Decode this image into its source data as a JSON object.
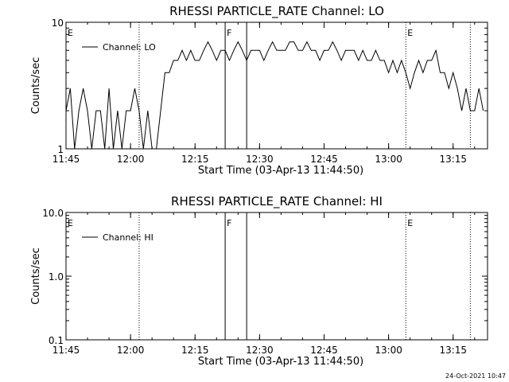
{
  "footer_date": "24-Oct-2021 10:47",
  "chart_data": [
    {
      "type": "line",
      "title": "RHESSI PARTICLE_RATE Channel: LO",
      "xlabel": "Start Time (03-Apr-13 11:44:50)",
      "ylabel": "Counts/sec",
      "yscale": "log",
      "xlim": [
        "11:45",
        "13:23"
      ],
      "ylim": [
        1,
        10
      ],
      "x_ticks": [
        "11:45",
        "12:00",
        "12:15",
        "12:30",
        "12:45",
        "13:00",
        "13:15"
      ],
      "y_ticks": [
        "1",
        "10"
      ],
      "legend": "Channel: LO",
      "markers": [
        {
          "label": "E",
          "time": "11:45",
          "style": "none"
        },
        {
          "label": "",
          "time": "12:02",
          "style": "dotted"
        },
        {
          "label": "F",
          "time": "12:22",
          "style": "solid"
        },
        {
          "label": "",
          "time": "12:27",
          "style": "solid"
        },
        {
          "label": "E",
          "time": "13:04",
          "style": "dotted"
        },
        {
          "label": "",
          "time": "13:19",
          "style": "dotted"
        }
      ],
      "series": [
        {
          "name": "Channel: LO",
          "x_minutes": [
            0,
            1,
            2,
            3,
            4,
            5,
            6,
            7,
            8,
            9,
            10,
            11,
            12,
            13,
            14,
            15,
            16,
            17,
            18,
            19,
            20,
            21,
            22,
            23,
            24,
            25,
            26,
            27,
            28,
            29,
            30,
            31,
            32,
            33,
            34,
            35,
            36,
            37,
            38,
            39,
            40,
            41,
            42,
            43,
            44,
            45,
            46,
            47,
            48,
            49,
            50,
            51,
            52,
            53,
            54,
            55,
            56,
            57,
            58,
            59,
            60,
            61,
            62,
            63,
            64,
            65,
            66,
            67,
            68,
            69,
            70,
            71,
            72,
            73,
            74,
            75,
            76,
            77,
            78,
            79,
            80,
            81,
            82,
            83,
            84,
            85,
            86,
            87,
            88,
            89,
            90,
            91,
            92,
            93,
            94,
            95,
            96,
            97
          ],
          "y": [
            2,
            3,
            1,
            2,
            3,
            2,
            1,
            2,
            2,
            1,
            3,
            1,
            2,
            1,
            2,
            2,
            3,
            2,
            1,
            2,
            1,
            1,
            2,
            4,
            4,
            5,
            5,
            6,
            5,
            6,
            5,
            5,
            6,
            7,
            6,
            5,
            6,
            6,
            5,
            6,
            7,
            6,
            5,
            6,
            6,
            6,
            5,
            6,
            7,
            6,
            6,
            6,
            7,
            7,
            6,
            6,
            7,
            6,
            6,
            5,
            6,
            6,
            7,
            6,
            5,
            6,
            6,
            6,
            5,
            6,
            5,
            5,
            6,
            5,
            5,
            4,
            5,
            4,
            5,
            4,
            3,
            4,
            5,
            4,
            5,
            5,
            6,
            4,
            4,
            3,
            4,
            3,
            2,
            3,
            2,
            2,
            3,
            2
          ]
        }
      ]
    },
    {
      "type": "line",
      "title": "RHESSI PARTICLE_RATE Channel: HI",
      "xlabel": "Start Time (03-Apr-13 11:44:50)",
      "ylabel": "Counts/sec",
      "yscale": "log",
      "xlim": [
        "11:45",
        "13:23"
      ],
      "ylim": [
        0.1,
        10
      ],
      "x_ticks": [
        "11:45",
        "12:00",
        "12:15",
        "12:30",
        "12:45",
        "13:00",
        "13:15"
      ],
      "y_ticks": [
        "0.1",
        "1.0",
        "10.0"
      ],
      "legend": "Channel: HI",
      "markers": [
        {
          "label": "E",
          "time": "11:45",
          "style": "none"
        },
        {
          "label": "",
          "time": "12:02",
          "style": "dotted"
        },
        {
          "label": "F",
          "time": "12:22",
          "style": "solid"
        },
        {
          "label": "",
          "time": "12:27",
          "style": "solid"
        },
        {
          "label": "E",
          "time": "13:04",
          "style": "dotted"
        },
        {
          "label": "",
          "time": "13:19",
          "style": "dotted"
        }
      ],
      "series": [
        {
          "name": "Channel: HI",
          "x_minutes": [],
          "y": []
        }
      ]
    }
  ]
}
